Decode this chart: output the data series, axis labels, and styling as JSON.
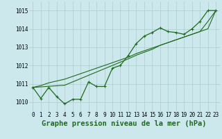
{
  "x": [
    0,
    1,
    2,
    3,
    4,
    5,
    6,
    7,
    8,
    9,
    10,
    11,
    12,
    13,
    14,
    15,
    16,
    17,
    18,
    19,
    20,
    21,
    22,
    23
  ],
  "y_main": [
    1010.8,
    1010.2,
    1010.8,
    1010.3,
    1009.9,
    1010.15,
    1010.15,
    1011.1,
    1010.85,
    1010.85,
    1011.85,
    1012.0,
    1012.55,
    1013.2,
    1013.6,
    1013.8,
    1014.05,
    1013.85,
    1013.8,
    1013.7,
    1014.0,
    1014.4,
    1015.0,
    1015.0
  ],
  "y_line1": [
    1010.8,
    1010.9,
    1011.05,
    1011.15,
    1011.25,
    1011.4,
    1011.55,
    1011.7,
    1011.85,
    1012.0,
    1012.15,
    1012.3,
    1012.45,
    1012.65,
    1012.8,
    1012.95,
    1013.1,
    1013.25,
    1013.4,
    1013.55,
    1013.7,
    1013.85,
    1014.0,
    1015.0
  ],
  "y_line2": [
    1010.8,
    1010.83,
    1010.86,
    1010.89,
    1010.92,
    1011.1,
    1011.28,
    1011.46,
    1011.64,
    1011.82,
    1012.0,
    1012.18,
    1012.36,
    1012.56,
    1012.72,
    1012.88,
    1013.1,
    1013.25,
    1013.4,
    1013.55,
    1013.7,
    1013.85,
    1014.4,
    1015.0
  ],
  "ylim": [
    1009.5,
    1015.5
  ],
  "yticks": [
    1010,
    1011,
    1012,
    1013,
    1014,
    1015
  ],
  "xlabel": "Graphe pression niveau de la mer (hPa)",
  "bg_color": "#cce8ed",
  "grid_color": "#aacccc",
  "line_color": "#1e6b1e",
  "xlabel_color": "#1e6b1e",
  "tick_fontsize": 5.5,
  "xlabel_fontsize": 7.5
}
